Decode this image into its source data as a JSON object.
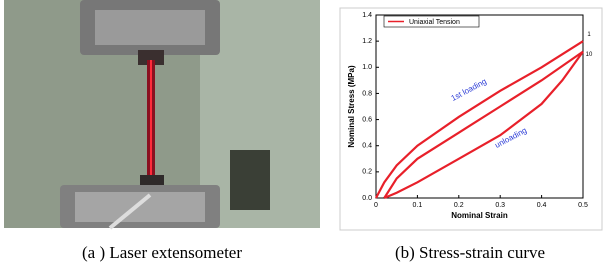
{
  "chart_data": {
    "type": "line",
    "legend": "upper left",
    "xlabel": "Nominal Strain",
    "ylabel": "Nominal Stress (MPa)",
    "xlim": [
      0,
      0.5
    ],
    "ylim": [
      0,
      1.4
    ],
    "xticks": [
      {
        "value": 0,
        "label": "0"
      },
      0.1,
      0.2,
      0.3,
      0.4,
      0.5
    ],
    "yticks": [
      {
        "value": 0,
        "label": "0.0"
      },
      0.2,
      0.4,
      0.6,
      0.8,
      {
        "value": 1,
        "label": "1.0"
      },
      1.2,
      1.4
    ],
    "annotations": [
      "1st loading",
      "unloading",
      "1",
      "10"
    ],
    "series": [
      {
        "name": "Uniaxial Tension",
        "color": "#e8202a",
        "x": [
          0,
          0.02,
          0.05,
          0.1,
          0.2,
          0.3,
          0.4,
          0.5,
          null,
          0.02,
          0.05,
          0.1,
          0.2,
          0.3,
          0.4,
          0.5,
          null,
          0.5,
          0.45,
          0.4,
          0.3,
          0.2,
          0.1,
          0.05,
          0.02
        ],
        "values": [
          0,
          0.12,
          0.25,
          0.4,
          0.62,
          0.82,
          1.0,
          1.2,
          null,
          0,
          0.15,
          0.3,
          0.5,
          0.7,
          0.9,
          1.12,
          null,
          1.12,
          0.9,
          0.72,
          0.48,
          0.3,
          0.12,
          0.04,
          0
        ]
      }
    ]
  },
  "captions": [
    "(a ) Laser extensometer",
    "(b) Stress-strain curve"
  ]
}
